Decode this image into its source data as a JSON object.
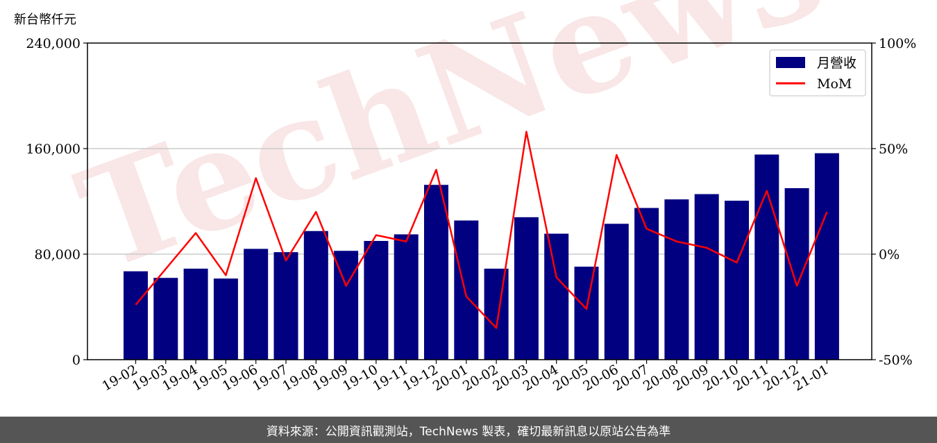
{
  "chart_data": {
    "type": "bar",
    "y_unit_label": "新台幣仟元",
    "categories": [
      "19-02",
      "19-03",
      "19-04",
      "19-05",
      "19-06",
      "19-07",
      "19-08",
      "19-09",
      "19-10",
      "19-11",
      "19-12",
      "20-01",
      "20-02",
      "20-03",
      "20-04",
      "20-05",
      "20-06",
      "20-07",
      "20-08",
      "20-09",
      "20-10",
      "20-11",
      "20-12",
      "21-01"
    ],
    "series": [
      {
        "name": "月營收",
        "kind": "bar",
        "axis": "left",
        "color": "#000080",
        "values": [
          67000,
          62000,
          69000,
          61500,
          84000,
          81500,
          97500,
          82500,
          90000,
          95000,
          132500,
          105500,
          69000,
          108000,
          95500,
          70500,
          103000,
          115000,
          121500,
          125500,
          120500,
          155500,
          130000,
          156500
        ]
      },
      {
        "name": "MoM",
        "kind": "line",
        "axis": "right",
        "color": "#ff0000",
        "unit": "%",
        "values": [
          -24,
          -7,
          10,
          -10,
          36,
          -3,
          20,
          -15,
          9,
          6,
          40,
          -20,
          -35,
          58,
          -11,
          -26,
          47,
          12,
          6,
          3,
          -4,
          30,
          -15,
          20
        ]
      }
    ],
    "y_left": {
      "min": 0,
      "max": 240000,
      "ticks": [
        0,
        80000,
        160000,
        240000
      ],
      "tick_labels": [
        "0",
        "80,000",
        "160,000",
        "240,000"
      ]
    },
    "y_right": {
      "min": -50,
      "max": 100,
      "ticks": [
        -50,
        0,
        50,
        100
      ],
      "tick_labels": [
        "-50%",
        "0%",
        "50%",
        "100%"
      ]
    },
    "grid": "horizontal",
    "legend": "top-right"
  },
  "watermark": "TechNews",
  "footer": {
    "text": "資料來源：公開資訊觀測站，TechNews 製表，確切最新訊息以原站公告為準"
  }
}
